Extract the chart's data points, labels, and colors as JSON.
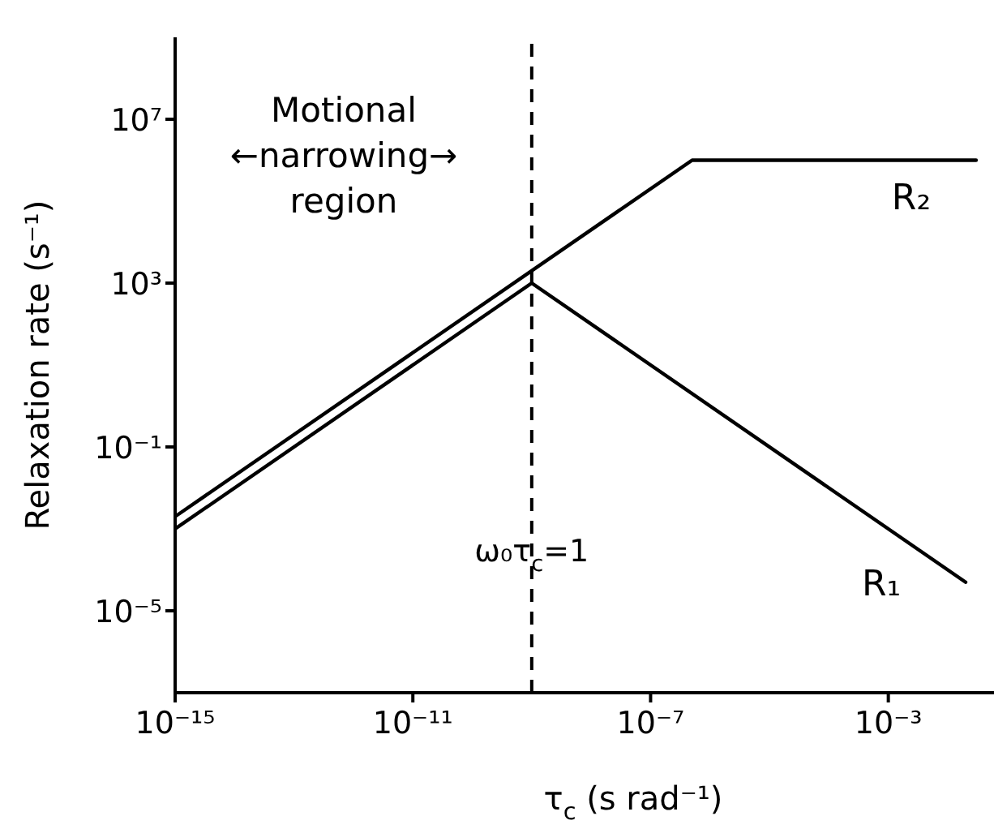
{
  "chart_data": {
    "type": "line",
    "xlabel": "τ$_{c}$ (s rad⁻¹)",
    "ylabel": "Relaxation rate (s⁻¹)",
    "annotations": [
      "Motional\n←narrowing→\nregion"
    ],
    "series": [
      {
        "name": "R₂",
        "color": "#000000",
        "x": [
          1e-15,
          5e-07,
          0.03
        ],
        "values": [
          0.002,
          1000000.0,
          1000000.0
        ]
      },
      {
        "name": "R₁",
        "color": "#000000",
        "x": [
          1e-15,
          1e-09,
          0.02
        ],
        "values": [
          0.001,
          1000.0,
          5e-05
        ]
      }
    ],
    "xlim": [
      1e-15,
      0.06
    ],
    "ylim": [
      1e-07,
      1000000000.0
    ],
    "xticks": [
      {
        "value": 1e-15,
        "label": "10⁻¹⁵"
      },
      {
        "value": 1e-11,
        "label": "10⁻¹¹"
      },
      {
        "value": 1e-07,
        "label": "10⁻⁷"
      },
      {
        "value": 0.001,
        "label": "10⁻³"
      }
    ],
    "yticks": [
      {
        "value": 1e-05,
        "label": "10⁻⁵"
      },
      {
        "value": 0.1,
        "label": "10⁻¹"
      },
      {
        "value": 1000.0,
        "label": "10³"
      },
      {
        "value": 10000000.0,
        "label": "10⁷"
      }
    ],
    "log": "xy",
    "marker": "none",
    "line_style": "solid",
    "ref_lines": [
      {
        "axis": "x",
        "value": 1e-09,
        "label": "ω₀τ$_{c}$=1",
        "line_style": "dashed",
        "color": "#000000"
      }
    ]
  }
}
